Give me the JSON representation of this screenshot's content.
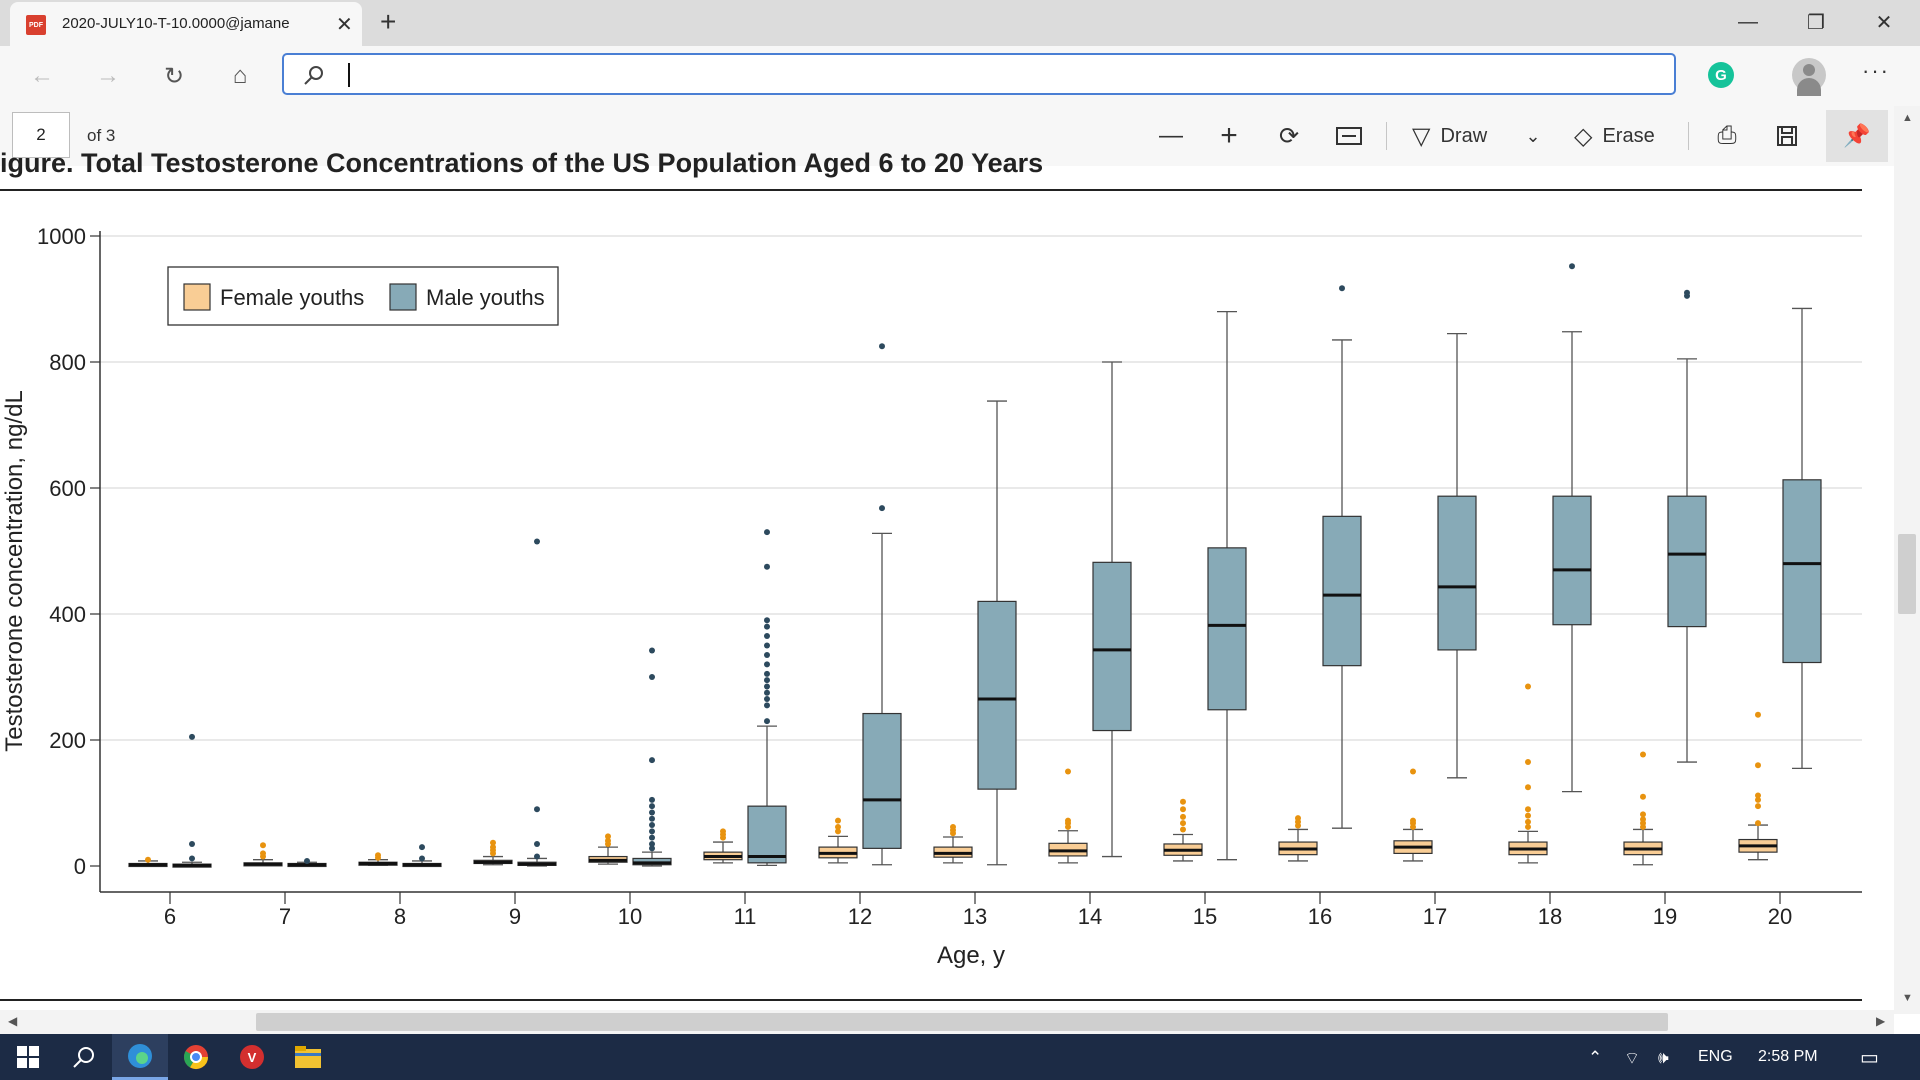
{
  "browser": {
    "tab_title": "2020-JULY10-T-10.0000@jamane",
    "pdf_badge": "PDF",
    "address": ""
  },
  "pdf_toolbar": {
    "page_number": "2",
    "page_count": "of 3",
    "draw_label": "Draw",
    "erase_label": "Erase"
  },
  "figure": {
    "caption": "igure. Total Testosterone Concentrations of the US Population Aged 6 to 20 Years"
  },
  "chart_data": {
    "type": "box",
    "xlabel": "Age, y",
    "ylabel": "Testosterone concentration, ng/dL",
    "ylim": [
      0,
      1000
    ],
    "yticks": [
      0,
      200,
      400,
      600,
      800,
      1000
    ],
    "categories": [
      "6",
      "7",
      "8",
      "9",
      "10",
      "11",
      "12",
      "13",
      "14",
      "15",
      "16",
      "17",
      "18",
      "19",
      "20"
    ],
    "legend_position": "top-left",
    "grid": true,
    "colors": {
      "female": "#f9cd95",
      "male": "#87aab7",
      "female_outlier": "#e8930f",
      "male_outlier": "#2d4a5e"
    },
    "series": [
      {
        "name": "Female youths",
        "boxes": [
          {
            "min": 0,
            "q1": 1,
            "median": 2,
            "q3": 4,
            "max": 8,
            "outliers": [
              10
            ]
          },
          {
            "min": 1,
            "q1": 2,
            "median": 3,
            "q3": 5,
            "max": 10,
            "outliers": [
              15,
              20,
              33
            ]
          },
          {
            "min": 1,
            "q1": 2,
            "median": 4,
            "q3": 6,
            "max": 10,
            "outliers": [
              13,
              17
            ]
          },
          {
            "min": 2,
            "q1": 4,
            "median": 6,
            "q3": 9,
            "max": 15,
            "outliers": [
              20,
              25,
              30,
              37
            ]
          },
          {
            "min": 3,
            "q1": 6,
            "median": 9,
            "q3": 15,
            "max": 30,
            "outliers": [
              35,
              40,
              47
            ]
          },
          {
            "min": 5,
            "q1": 10,
            "median": 15,
            "q3": 22,
            "max": 38,
            "outliers": [
              45,
              50,
              55
            ]
          },
          {
            "min": 5,
            "q1": 13,
            "median": 20,
            "q3": 30,
            "max": 47,
            "outliers": [
              55,
              62,
              72
            ]
          },
          {
            "min": 5,
            "q1": 14,
            "median": 20,
            "q3": 30,
            "max": 46,
            "outliers": [
              52,
              57,
              62
            ]
          },
          {
            "min": 5,
            "q1": 16,
            "median": 24,
            "q3": 36,
            "max": 56,
            "outliers": [
              62,
              68,
              72,
              150
            ]
          },
          {
            "min": 8,
            "q1": 17,
            "median": 25,
            "q3": 35,
            "max": 50,
            "outliers": [
              58,
              68,
              78,
              90,
              102
            ]
          },
          {
            "min": 8,
            "q1": 18,
            "median": 27,
            "q3": 38,
            "max": 58,
            "outliers": [
              64,
              70,
              76
            ]
          },
          {
            "min": 8,
            "q1": 20,
            "median": 30,
            "q3": 40,
            "max": 58,
            "outliers": [
              62,
              68,
              72,
              150
            ]
          },
          {
            "min": 5,
            "q1": 18,
            "median": 27,
            "q3": 38,
            "max": 55,
            "outliers": [
              62,
              70,
              80,
              90,
              125,
              165,
              285
            ]
          },
          {
            "min": 2,
            "q1": 18,
            "median": 27,
            "q3": 38,
            "max": 58,
            "outliers": [
              62,
              68,
              74,
              82,
              110,
              177
            ]
          },
          {
            "min": 10,
            "q1": 22,
            "median": 32,
            "q3": 42,
            "max": 65,
            "outliers": [
              68,
              95,
              105,
              112,
              160,
              240
            ]
          }
        ]
      },
      {
        "name": "Male youths",
        "boxes": [
          {
            "min": 0,
            "q1": 0,
            "median": 1,
            "q3": 3,
            "max": 6,
            "outliers": [
              12,
              35,
              205
            ]
          },
          {
            "min": 0,
            "q1": 1,
            "median": 2,
            "q3": 4,
            "max": 6,
            "outliers": [
              8
            ]
          },
          {
            "min": 0,
            "q1": 1,
            "median": 2,
            "q3": 4,
            "max": 8,
            "outliers": [
              12,
              30
            ]
          },
          {
            "min": 0,
            "q1": 1,
            "median": 3,
            "q3": 6,
            "max": 12,
            "outliers": [
              15,
              35,
              90,
              515
            ]
          },
          {
            "min": 0,
            "q1": 2,
            "median": 5,
            "q3": 12,
            "max": 22,
            "outliers": [
              28,
              35,
              45,
              55,
              65,
              75,
              85,
              95,
              105,
              168,
              300,
              342
            ]
          },
          {
            "min": 1,
            "q1": 5,
            "median": 15,
            "q3": 95,
            "max": 222,
            "outliers": [
              230,
              255,
              265,
              275,
              285,
              295,
              305,
              320,
              335,
              350,
              365,
              380,
              390,
              475,
              530
            ]
          },
          {
            "min": 2,
            "q1": 28,
            "median": 105,
            "q3": 242,
            "max": 528,
            "outliers": [
              568,
              825
            ]
          },
          {
            "min": 2,
            "q1": 122,
            "median": 265,
            "q3": 420,
            "max": 738,
            "outliers": []
          },
          {
            "min": 15,
            "q1": 215,
            "median": 343,
            "q3": 482,
            "max": 800,
            "outliers": []
          },
          {
            "min": 10,
            "q1": 248,
            "median": 382,
            "q3": 505,
            "max": 880,
            "outliers": []
          },
          {
            "min": 60,
            "q1": 318,
            "median": 430,
            "q3": 555,
            "max": 835,
            "outliers": [
              917
            ]
          },
          {
            "min": 140,
            "q1": 343,
            "median": 443,
            "q3": 587,
            "max": 845,
            "outliers": []
          },
          {
            "min": 118,
            "q1": 383,
            "median": 470,
            "q3": 587,
            "max": 848,
            "outliers": [
              952
            ]
          },
          {
            "min": 165,
            "q1": 380,
            "median": 495,
            "q3": 587,
            "max": 805,
            "outliers": [
              905,
              910
            ]
          },
          {
            "min": 155,
            "q1": 323,
            "median": 480,
            "q3": 613,
            "max": 885,
            "outliers": []
          }
        ]
      }
    ]
  },
  "taskbar": {
    "language": "ENG",
    "time": "2:58 PM"
  }
}
